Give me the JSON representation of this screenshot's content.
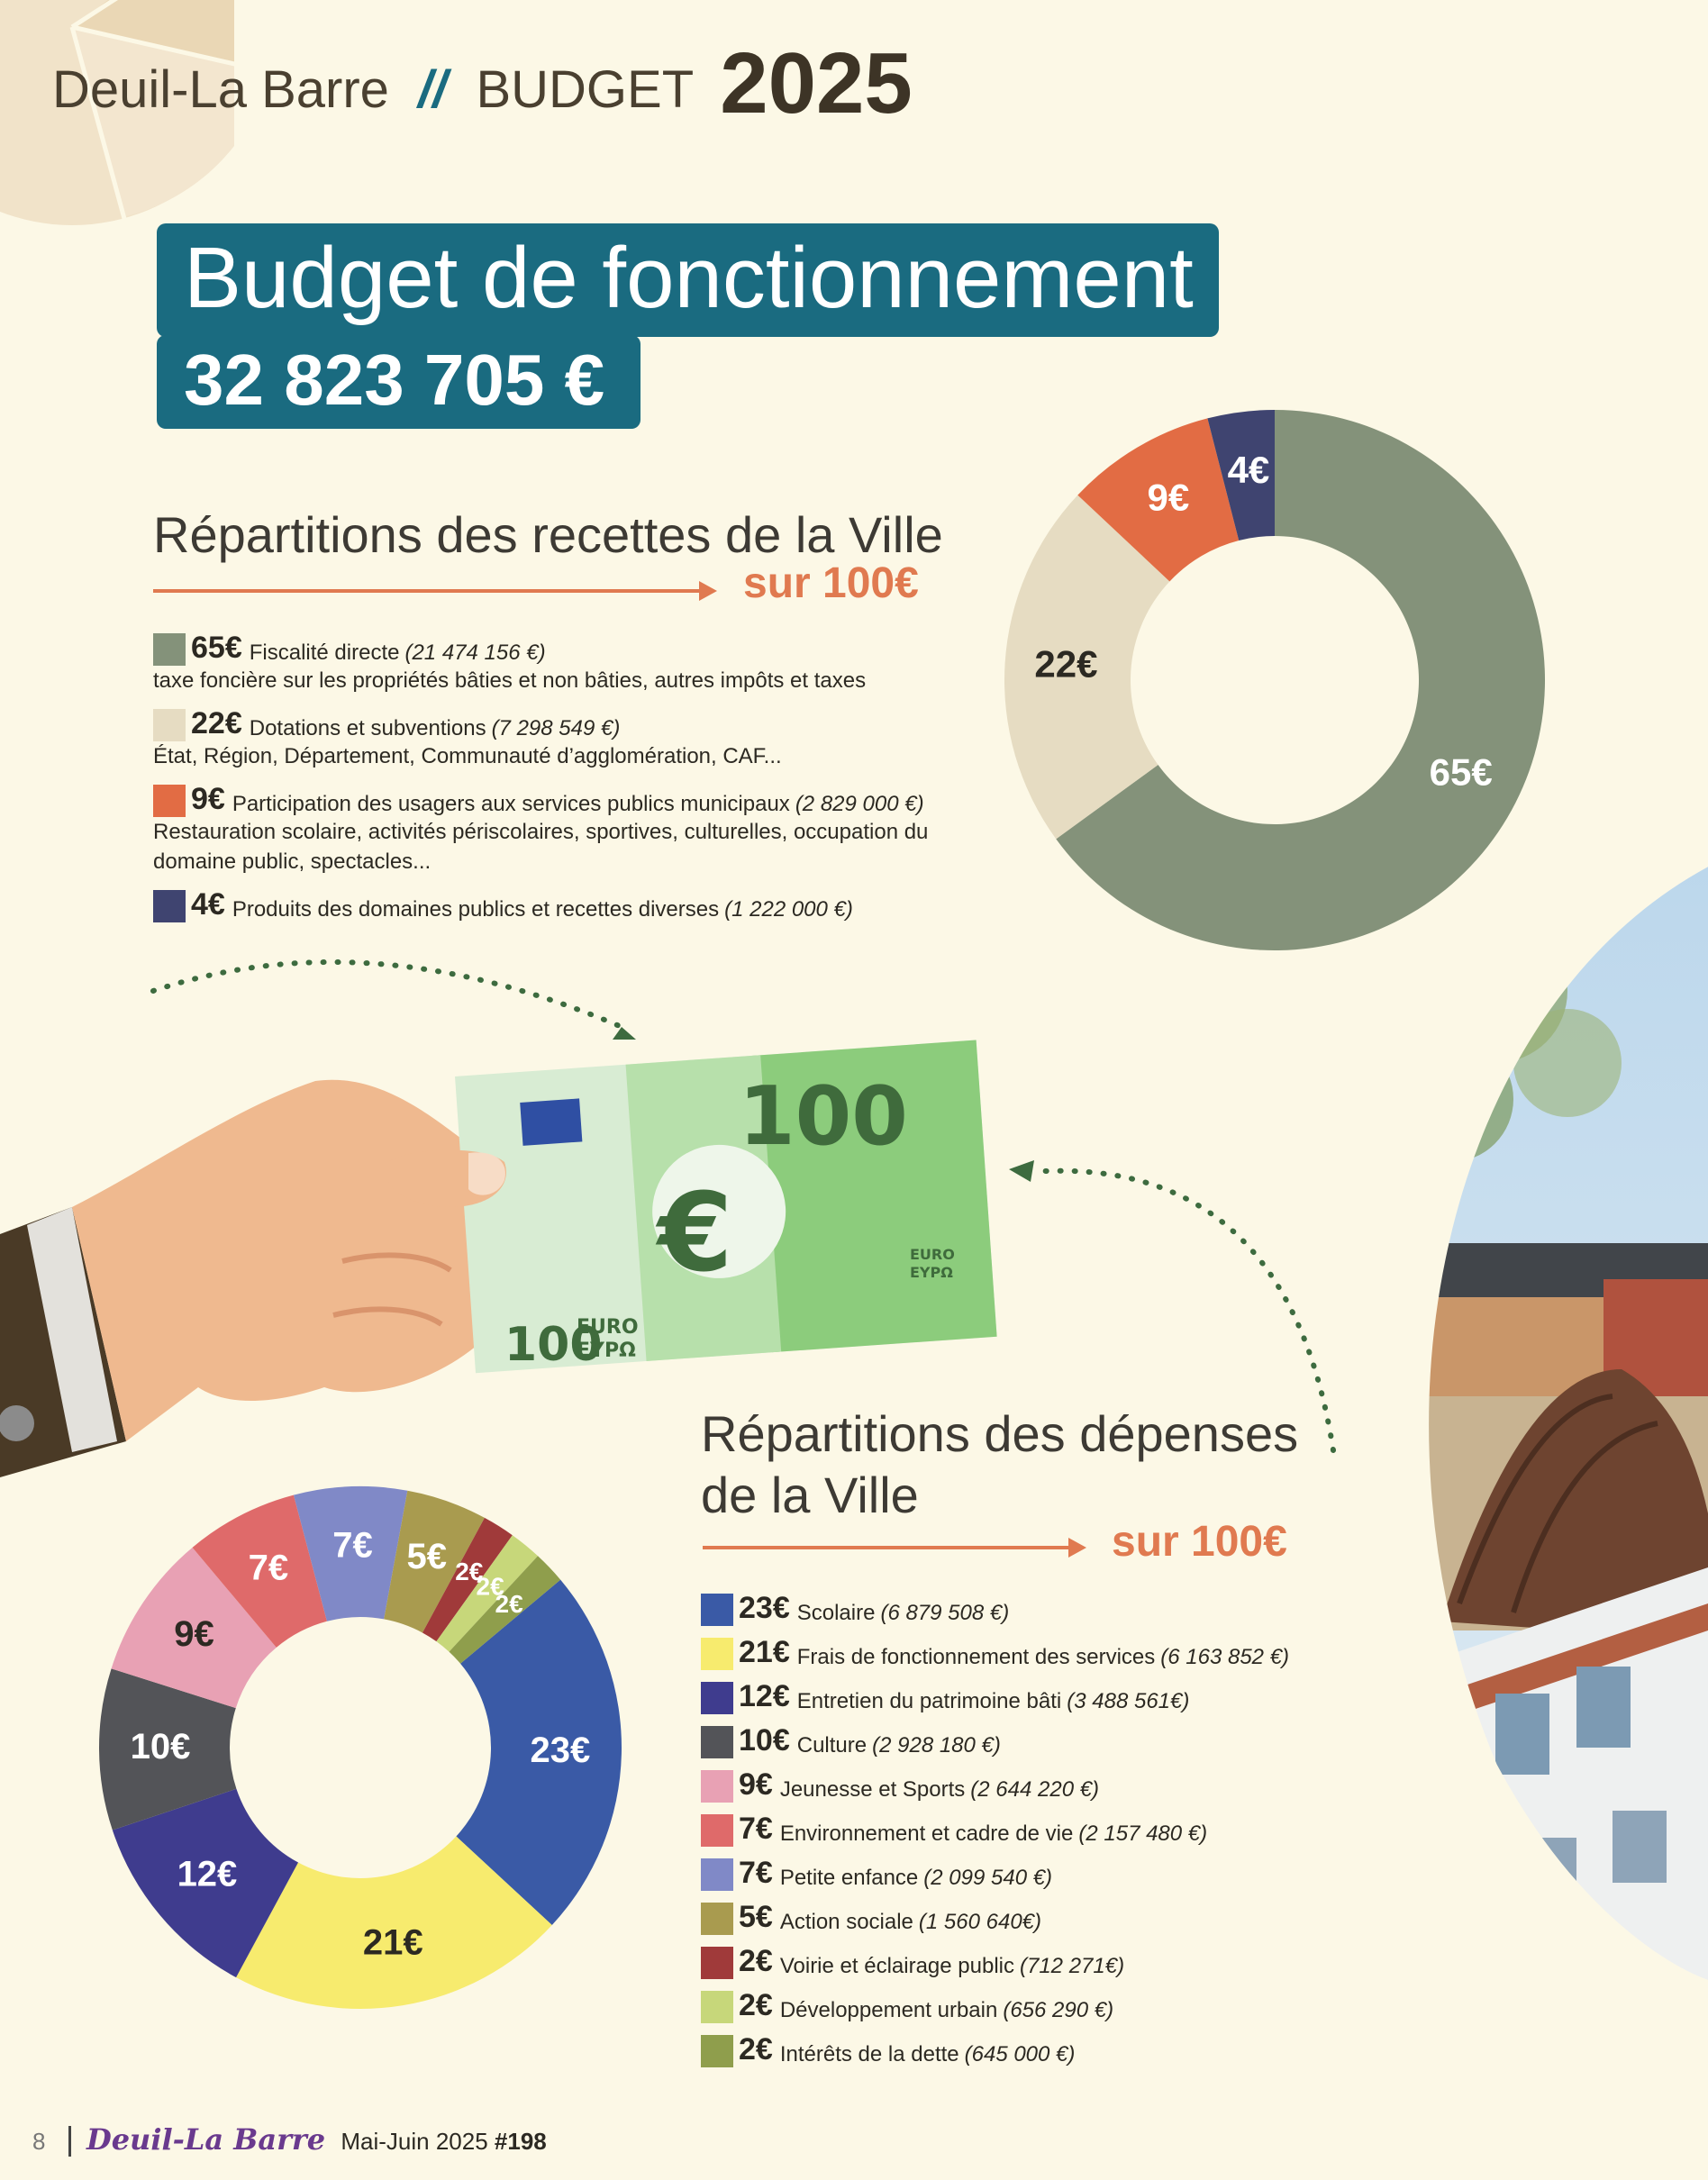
{
  "header": {
    "city": "Deuil-La Barre",
    "separator": "//",
    "budget": "BUDGET",
    "year": "2025"
  },
  "title": "Budget de fonctionnement",
  "total_amount": "32 823 705 €",
  "colors": {
    "teal": "#1a6b80",
    "orange": "#e07a50"
  },
  "recettes": {
    "title": "Répartitions des recettes de la Ville",
    "sur": "sur 100€",
    "items": [
      {
        "value": "65€",
        "label": "Fiscalité directe",
        "amount": "(21 474 156 €)",
        "desc": "taxe foncière sur les propriétés bâties et non bâties, autres impôts et taxes",
        "color": "#84927a"
      },
      {
        "value": "22€",
        "label": "Dotations et subventions",
        "amount": "(7 298 549 €)",
        "desc": "État, Région, Département, Communauté d’agglomération, CAF...",
        "color": "#e6dcc2"
      },
      {
        "value": "9€",
        "label": "Participation des usagers aux services publics municipaux",
        "amount": "(2 829 000 €)",
        "desc": "Restauration scolaire, activités périscolaires, sportives, culturelles, occupation du domaine public, spectacles...",
        "color": "#e26c44"
      },
      {
        "value": "4€",
        "label": "Produits des domaines publics et recettes diverses",
        "amount": "(1 222 000 €)",
        "desc": "",
        "color": "#3f4470"
      }
    ]
  },
  "depenses": {
    "title_line1": "Répartitions des dépenses",
    "title_line2": "de la Ville",
    "sur": "sur 100€",
    "items": [
      {
        "value": "23€",
        "label": "Scolaire",
        "amount": "(6 879 508 €)",
        "color": "#3a5aa6"
      },
      {
        "value": "21€",
        "label": "Frais de fonctionnement des services",
        "amount": "(6 163 852 €)",
        "color": "#f7eb6e"
      },
      {
        "value": "12€",
        "label": "Entretien du patrimoine bâti",
        "amount": "(3 488 561€)",
        "color": "#3f3c8e"
      },
      {
        "value": "10€",
        "label": "Culture",
        "amount": "(2 928 180 €)",
        "color": "#535458"
      },
      {
        "value": "9€",
        "label": "Jeunesse et Sports",
        "amount": "(2 644 220 €)",
        "color": "#e8a1b4"
      },
      {
        "value": "7€",
        "label": "Environnement et cadre de vie",
        "amount": "(2 157 480 €)",
        "color": "#df6a6a"
      },
      {
        "value": "7€",
        "label": "Petite enfance",
        "amount": "(2 099 540 €)",
        "color": "#8089c7"
      },
      {
        "value": "5€",
        "label": "Action sociale",
        "amount": "(1 560 640€)",
        "color": "#a99b4f"
      },
      {
        "value": "2€",
        "label": "Voirie et éclairage public",
        "amount": "(712 271€)",
        "color": "#a03a3a"
      },
      {
        "value": "2€",
        "label": "Développement urbain",
        "amount": "(656 290 €)",
        "color": "#c7d77a"
      },
      {
        "value": "2€",
        "label": "Intérêts de la dette",
        "amount": "(645 000 €)",
        "color": "#8f9e4c"
      }
    ]
  },
  "chart_data": [
    {
      "type": "pie",
      "title": "Répartitions des recettes de la Ville",
      "categories": [
        "Fiscalité directe",
        "Dotations et subventions",
        "Participation des usagers aux services publics municipaux",
        "Produits des domaines publics et recettes diverses"
      ],
      "values": [
        65,
        22,
        9,
        4
      ],
      "labels": [
        "65€",
        "22€",
        "9€",
        "4€"
      ],
      "colors": [
        "#84927a",
        "#e6dcc2",
        "#e26c44",
        "#3f4470"
      ]
    },
    {
      "type": "pie",
      "title": "Répartitions des dépenses de la Ville",
      "categories": [
        "Scolaire",
        "Frais de fonctionnement des services",
        "Entretien du patrimoine bâti",
        "Culture",
        "Jeunesse et Sports",
        "Environnement et cadre de vie",
        "Petite enfance",
        "Action sociale",
        "Voirie et éclairage public",
        "Développement urbain",
        "Intérêts de la dette"
      ],
      "values": [
        23,
        21,
        12,
        10,
        9,
        7,
        7,
        5,
        2,
        2,
        2
      ],
      "labels": [
        "23€",
        "21€",
        "12€",
        "10€",
        "9€",
        "7€",
        "7€",
        "5€",
        "2€",
        "2€",
        "2€"
      ],
      "colors": [
        "#3a5aa6",
        "#f7eb6e",
        "#3f3c8e",
        "#535458",
        "#e8a1b4",
        "#df6a6a",
        "#8089c7",
        "#a99b4f",
        "#a03a3a",
        "#c7d77a",
        "#8f9e4c"
      ]
    }
  ],
  "banknote": {
    "denomination": "100",
    "euro": "EURO",
    "eypo": "EYPΩ",
    "symbol": "€"
  },
  "footer": {
    "page": "8",
    "brand": "Deuil-La Barre",
    "issue_date": "Mai-Juin 2025",
    "issue_number": "#198"
  }
}
